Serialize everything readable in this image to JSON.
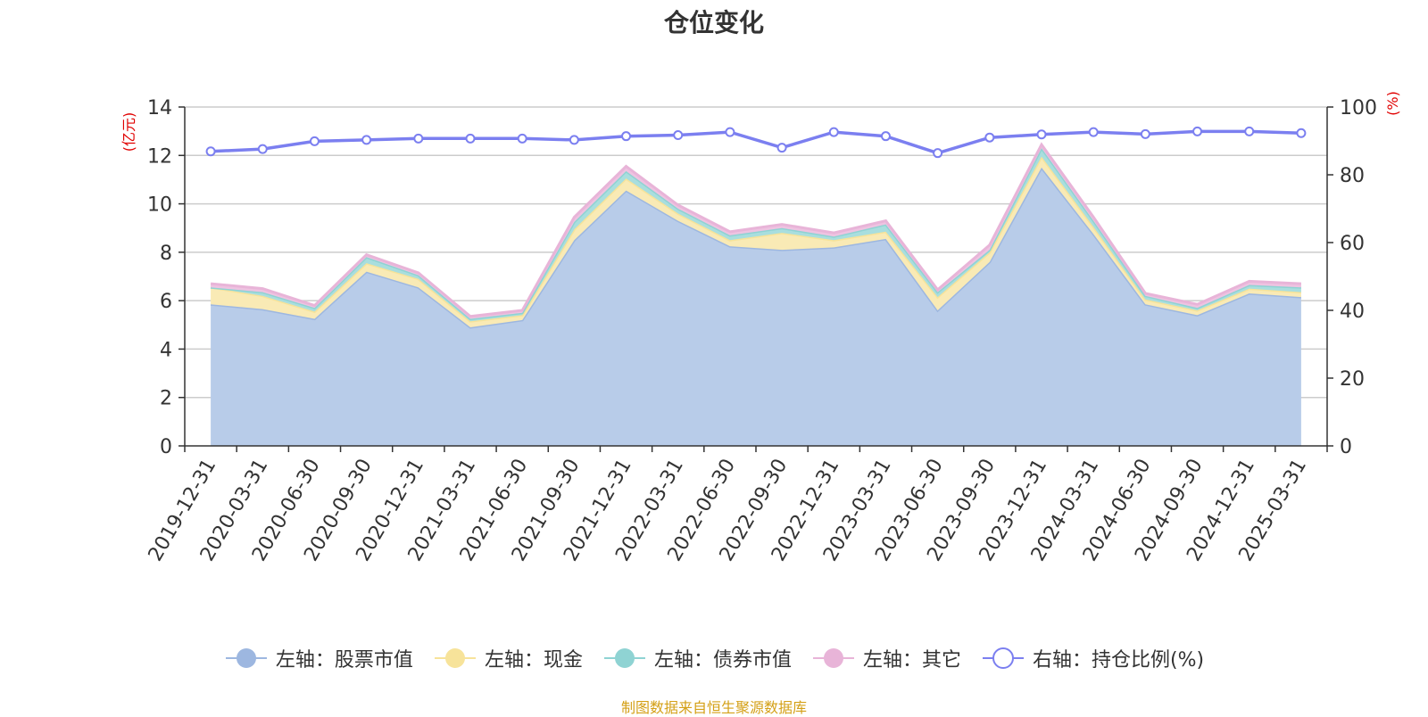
{
  "title": "仓位变化",
  "footer": "制图数据来自恒生聚源数据库",
  "chart_data": {
    "type": "area",
    "title": "仓位变化",
    "categories": [
      "2019-12-31",
      "2020-03-31",
      "2020-06-30",
      "2020-09-30",
      "2020-12-31",
      "2021-03-31",
      "2021-06-30",
      "2021-09-30",
      "2021-12-31",
      "2022-03-31",
      "2022-06-30",
      "2022-09-30",
      "2022-12-31",
      "2023-03-31",
      "2023-06-30",
      "2023-09-30",
      "2023-12-31",
      "2024-03-31",
      "2024-06-30",
      "2024-09-30",
      "2024-12-31",
      "2025-03-31"
    ],
    "left_axis": {
      "unit": "(亿元)",
      "ylim": [
        0,
        14
      ],
      "ticks": [
        "0",
        "2",
        "4",
        "6",
        "8",
        "10",
        "12",
        "14"
      ]
    },
    "right_axis": {
      "unit": "(%)",
      "ylim": [
        0,
        100
      ],
      "ticks": [
        "0",
        "20",
        "40",
        "60",
        "80",
        "100"
      ]
    },
    "grid": true,
    "legend_position": "bottom",
    "series": [
      {
        "name": "左轴：股票市值",
        "axis": "left",
        "type": "area",
        "color": "#9db7e0",
        "fill": "#b8cce9",
        "values": [
          5.85,
          5.65,
          5.25,
          7.2,
          6.55,
          4.9,
          5.2,
          8.5,
          10.55,
          9.3,
          8.25,
          8.1,
          8.2,
          8.55,
          5.6,
          7.6,
          11.5,
          8.75,
          5.85,
          5.4,
          6.3,
          6.15
        ]
      },
      {
        "name": "左轴：现金",
        "axis": "left",
        "type": "area",
        "color": "#f7e39a",
        "fill": "#f9eab5",
        "values": [
          0.7,
          0.55,
          0.3,
          0.35,
          0.35,
          0.25,
          0.2,
          0.45,
          0.5,
          0.3,
          0.25,
          0.7,
          0.3,
          0.3,
          0.55,
          0.4,
          0.45,
          0.3,
          0.2,
          0.2,
          0.2,
          0.2
        ]
      },
      {
        "name": "左轴：债券市值",
        "axis": "left",
        "type": "area",
        "color": "#8fd3d3",
        "fill": "#a9dede",
        "values": [
          0.0,
          0.15,
          0.15,
          0.25,
          0.15,
          0.1,
          0.1,
          0.3,
          0.3,
          0.2,
          0.2,
          0.2,
          0.15,
          0.3,
          0.2,
          0.1,
          0.35,
          0.25,
          0.15,
          0.1,
          0.15,
          0.2
        ]
      },
      {
        "name": "左轴：其它",
        "axis": "left",
        "type": "area",
        "color": "#e8b4d8",
        "fill": "#eec3e1",
        "values": [
          0.15,
          0.15,
          0.1,
          0.1,
          0.1,
          0.1,
          0.1,
          0.2,
          0.2,
          0.15,
          0.15,
          0.15,
          0.15,
          0.15,
          0.1,
          0.2,
          0.15,
          0.15,
          0.1,
          0.15,
          0.15,
          0.15
        ]
      },
      {
        "name": "右轴：持仓比例(%)",
        "axis": "right",
        "type": "line",
        "color": "#7b7ff0",
        "values": [
          86.9,
          87.6,
          89.9,
          90.3,
          90.7,
          90.7,
          90.7,
          90.3,
          91.4,
          91.7,
          92.6,
          88.0,
          92.6,
          91.4,
          86.4,
          91.0,
          91.9,
          92.6,
          92.0,
          92.8,
          92.8,
          92.3
        ]
      }
    ]
  }
}
